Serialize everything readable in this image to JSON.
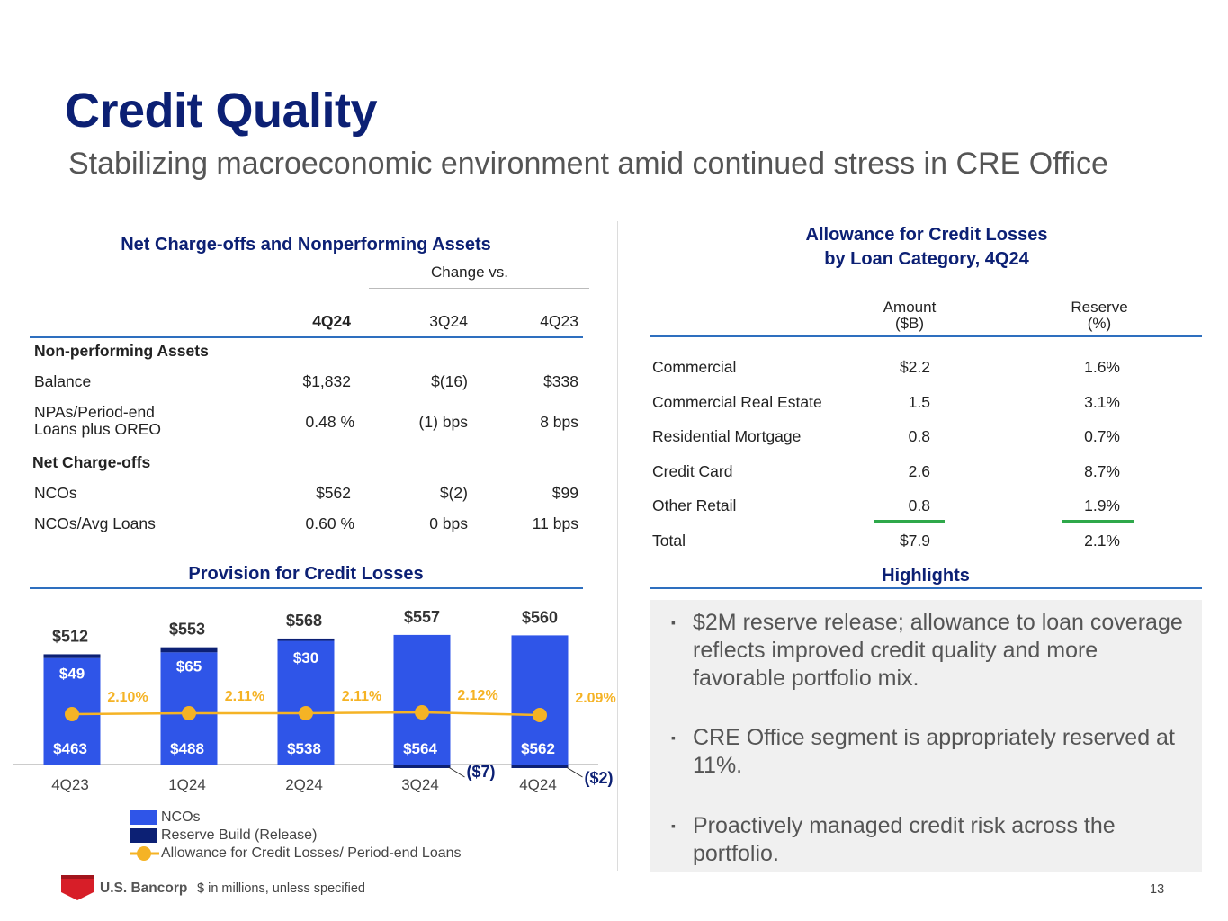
{
  "title": "Credit Quality",
  "subtitle": "Stabilizing macroeconomic environment amid continued stress in CRE Office",
  "nco_table": {
    "title": "Net Charge-offs and Nonperforming Assets",
    "change_label": "Change vs.",
    "columns": [
      "4Q24",
      "3Q24",
      "4Q23"
    ],
    "sections": [
      {
        "header": "Non-performing Assets",
        "rows": [
          {
            "label": "Balance",
            "values": [
              "$1,832",
              "$(16)",
              "$338"
            ]
          },
          {
            "label_line1": "NPAs/Period-end",
            "label_line2": "Loans plus OREO",
            "values": [
              "0.48 %",
              "(1) bps",
              "8 bps"
            ]
          }
        ]
      },
      {
        "header": "Net Charge-offs",
        "rows": [
          {
            "label": "NCOs",
            "values": [
              "$562",
              "$(2)",
              "$99"
            ]
          },
          {
            "label": "NCOs/Avg Loans",
            "values": [
              "0.60 %",
              "0 bps",
              "11 bps"
            ]
          }
        ]
      }
    ]
  },
  "acl_table": {
    "title_line1": "Allowance for Credit Losses",
    "title_line2": "by Loan Category, 4Q24",
    "col1_line1": "Amount",
    "col1_line2": "($B)",
    "col2_line1": "Reserve",
    "col2_line2": "(%)",
    "rows": [
      {
        "label": "Commercial",
        "amount": "$2.2",
        "reserve": "1.6%"
      },
      {
        "label": "Commercial Real Estate",
        "amount": "1.5",
        "reserve": "3.1%"
      },
      {
        "label": "Residential Mortgage",
        "amount": "0.8",
        "reserve": "0.7%"
      },
      {
        "label": "Credit Card",
        "amount": "2.6",
        "reserve": "8.7%"
      },
      {
        "label": "Other Retail",
        "amount": "0.8",
        "reserve": "1.9%"
      },
      {
        "label": "Total",
        "amount": "$7.9",
        "reserve": "2.1%"
      }
    ]
  },
  "highlights": {
    "title": "Highlights",
    "bullet_glyph": "▪",
    "items": [
      "$2M reserve release; allowance to loan coverage reflects improved credit quality and more favorable portfolio mix.",
      "CRE Office segment is appropriately reserved at 11%.",
      "Proactively managed credit risk across the portfolio."
    ]
  },
  "colors": {
    "ncos": "#2f55e8",
    "reserve": "#0c2074",
    "acl_line": "#f5b325",
    "accent_green": "#2ea84a",
    "title_navy": "#0c2074"
  },
  "chart_data": {
    "type": "bar",
    "title": "Provision for Credit Losses",
    "categories": [
      "4Q23",
      "1Q24",
      "2Q24",
      "3Q24",
      "4Q24"
    ],
    "series": [
      {
        "name": "NCOs",
        "values": [
          463,
          488,
          538,
          564,
          562
        ],
        "labels": [
          "$463",
          "$488",
          "$538",
          "$564",
          "$562"
        ]
      },
      {
        "name": "Reserve Build (Release)",
        "values": [
          49,
          65,
          30,
          -7,
          -2
        ],
        "labels": [
          "$49",
          "$65",
          "$30",
          "($7)",
          "($2)"
        ]
      },
      {
        "name": "Allowance for Credit Losses/ Period-end Loans",
        "type": "line",
        "values": [
          2.1,
          2.11,
          2.11,
          2.12,
          2.09
        ],
        "labels": [
          "2.10%",
          "2.11%",
          "2.11%",
          "2.12%",
          "2.09%"
        ]
      }
    ],
    "totals": [
      512,
      553,
      568,
      557,
      560
    ],
    "total_labels": [
      "$512",
      "$553",
      "$568",
      "$557",
      "$560"
    ],
    "stacked": true,
    "legend_position": "bottom-left"
  },
  "footer": {
    "logo_text": "U.S. Bancorp",
    "note": "$ in millions, unless specified",
    "page_number": "13"
  }
}
